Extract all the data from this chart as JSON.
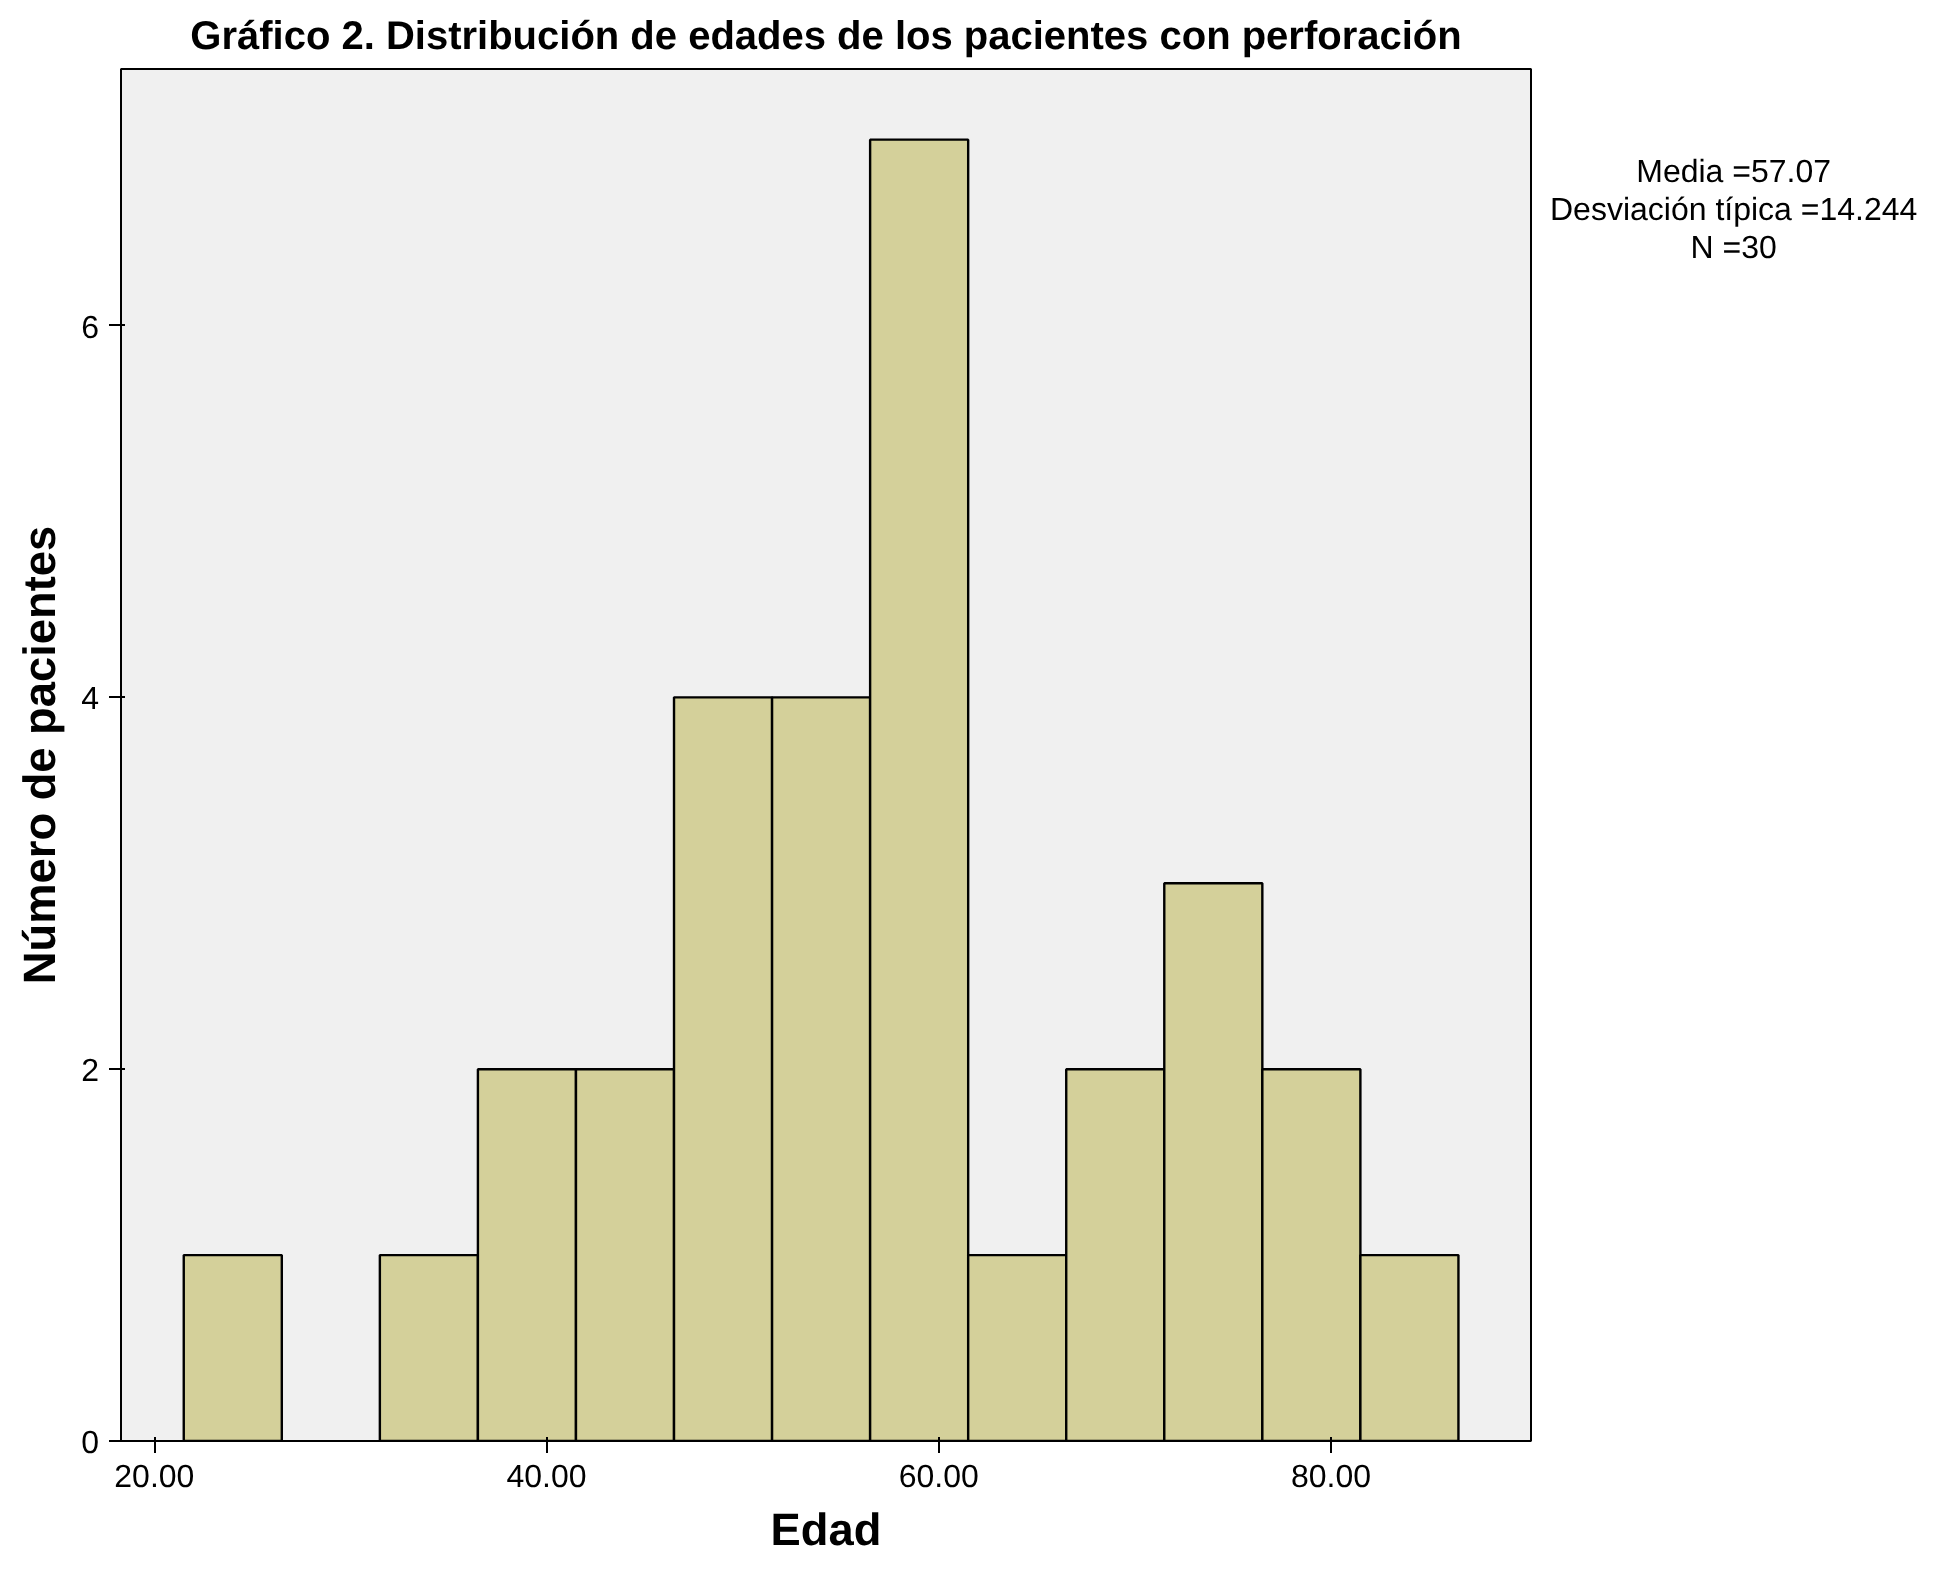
{
  "chart_data": {
    "type": "histogram",
    "title": "Gráfico 2. Distribución de edades de los pacientes con perforación",
    "xlabel": "Edad",
    "ylabel": "Número de pacientes",
    "bins": [
      21.5,
      26.5,
      31.5,
      36.5,
      41.5,
      46.5,
      51.5,
      56.5,
      61.5,
      66.5,
      71.5,
      76.5,
      81.5,
      86.5
    ],
    "values": [
      1,
      0,
      1,
      2,
      2,
      4,
      4,
      7,
      1,
      2,
      3,
      2,
      1
    ],
    "color": "#d4d09a",
    "xlim": [
      18.3,
      90.2
    ],
    "ylim": [
      0,
      7.38
    ],
    "xticks": [
      {
        "value": 20,
        "label": "20.00"
      },
      {
        "value": 40,
        "label": "40.00"
      },
      {
        "value": 60,
        "label": "60.00"
      },
      {
        "value": 80,
        "label": "80.00"
      }
    ],
    "yticks": [
      0,
      2,
      4,
      6
    ],
    "grid": false,
    "annotations": [
      "Media =57.07",
      "Desviación típica =14.244",
      "N =30"
    ]
  }
}
